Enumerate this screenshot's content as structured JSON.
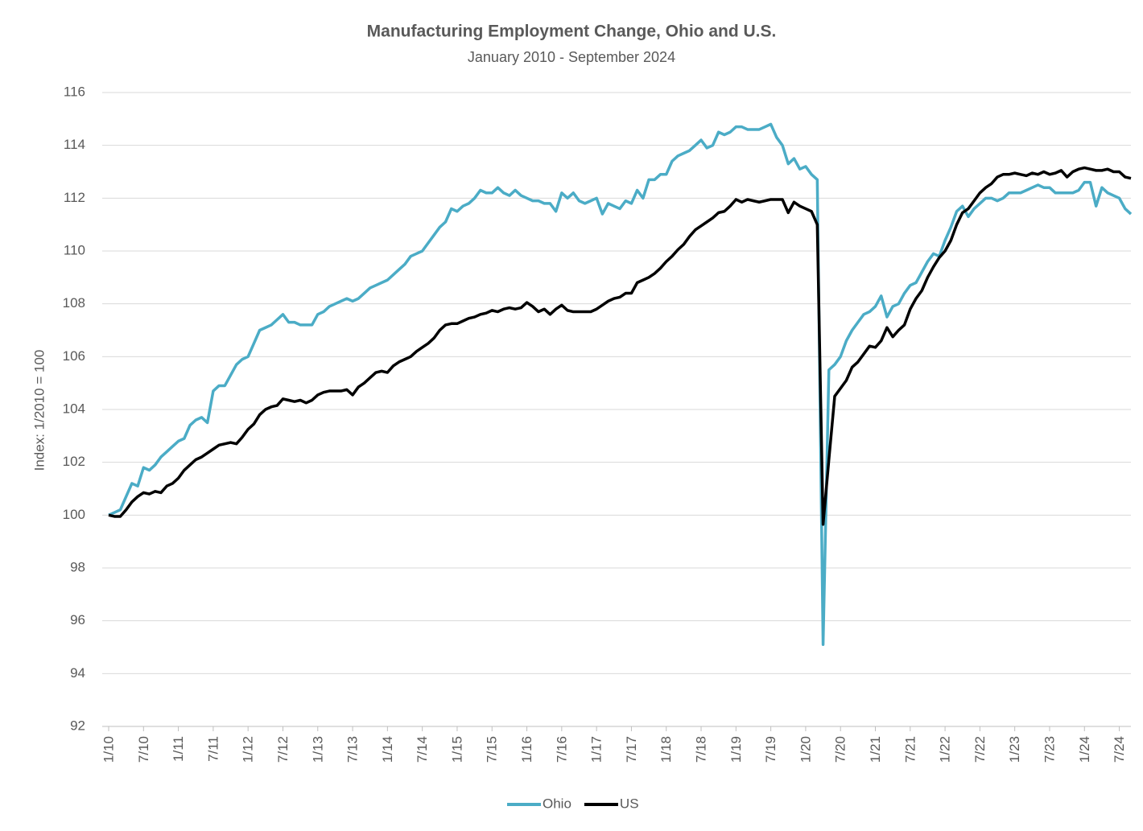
{
  "chart_data": {
    "type": "line",
    "title": "Manufacturing Employment Change, Ohio and U.S.",
    "subtitle": "January 2010 - September 2024",
    "y_label": "Index: 1/2010 = 100",
    "legend": "bottom",
    "grid": true,
    "ylim": [
      92,
      116
    ],
    "yticks": [
      92,
      94,
      96,
      98,
      100,
      102,
      104,
      106,
      108,
      110,
      112,
      114,
      116
    ],
    "categories": [
      "1/10",
      null,
      null,
      null,
      null,
      null,
      "7/10",
      null,
      null,
      null,
      null,
      null,
      "1/11",
      null,
      null,
      null,
      null,
      null,
      "7/11",
      null,
      null,
      null,
      null,
      null,
      "1/12",
      null,
      null,
      null,
      null,
      null,
      "7/12",
      null,
      null,
      null,
      null,
      null,
      "1/13",
      null,
      null,
      null,
      null,
      null,
      "7/13",
      null,
      null,
      null,
      null,
      null,
      "1/14",
      null,
      null,
      null,
      null,
      null,
      "7/14",
      null,
      null,
      null,
      null,
      null,
      "1/15",
      null,
      null,
      null,
      null,
      null,
      "7/15",
      null,
      null,
      null,
      null,
      null,
      "1/16",
      null,
      null,
      null,
      null,
      null,
      "7/16",
      null,
      null,
      null,
      null,
      null,
      "1/17",
      null,
      null,
      null,
      null,
      null,
      "7/17",
      null,
      null,
      null,
      null,
      null,
      "1/18",
      null,
      null,
      null,
      null,
      null,
      "7/18",
      null,
      null,
      null,
      null,
      null,
      "1/19",
      null,
      null,
      null,
      null,
      null,
      "7/19",
      null,
      null,
      null,
      null,
      null,
      "1/20",
      null,
      null,
      null,
      null,
      null,
      "7/20",
      null,
      null,
      null,
      null,
      null,
      "1/21",
      null,
      null,
      null,
      null,
      null,
      "7/21",
      null,
      null,
      null,
      null,
      null,
      "1/22",
      null,
      null,
      null,
      null,
      null,
      "7/22",
      null,
      null,
      null,
      null,
      null,
      "1/23",
      null,
      null,
      null,
      null,
      null,
      "7/23",
      null,
      null,
      null,
      null,
      null,
      "1/24",
      null,
      null,
      null,
      null,
      null,
      "7/24",
      null,
      null
    ],
    "series": [
      {
        "name": "Ohio",
        "color": "#4bacc6",
        "values": [
          100.0,
          100.1,
          100.2,
          100.7,
          101.2,
          101.1,
          101.8,
          101.7,
          101.9,
          102.2,
          102.4,
          102.6,
          102.8,
          102.9,
          103.4,
          103.6,
          103.7,
          103.5,
          104.7,
          104.9,
          104.9,
          105.3,
          105.7,
          105.9,
          106.0,
          106.5,
          107.0,
          107.1,
          107.2,
          107.4,
          107.6,
          107.3,
          107.3,
          107.2,
          107.2,
          107.2,
          107.6,
          107.7,
          107.9,
          108.0,
          108.1,
          108.2,
          108.1,
          108.2,
          108.4,
          108.6,
          108.7,
          108.8,
          108.9,
          109.1,
          109.3,
          109.5,
          109.8,
          109.9,
          110.0,
          110.3,
          110.6,
          110.9,
          111.1,
          111.6,
          111.5,
          111.7,
          111.8,
          112.0,
          112.3,
          112.2,
          112.2,
          112.4,
          112.2,
          112.1,
          112.3,
          112.1,
          112.0,
          111.9,
          111.9,
          111.8,
          111.8,
          111.5,
          112.2,
          112.0,
          112.2,
          111.9,
          111.8,
          111.9,
          112.0,
          111.4,
          111.8,
          111.7,
          111.6,
          111.9,
          111.8,
          112.3,
          112.0,
          112.7,
          112.7,
          112.9,
          112.9,
          113.4,
          113.6,
          113.7,
          113.8,
          114.0,
          114.2,
          113.9,
          114.0,
          114.5,
          114.4,
          114.5,
          114.7,
          114.7,
          114.6,
          114.6,
          114.6,
          114.7,
          114.8,
          114.3,
          114.0,
          113.3,
          113.5,
          113.1,
          113.2,
          112.9,
          112.7,
          95.1,
          105.5,
          105.7,
          106.0,
          106.6,
          107.0,
          107.3,
          107.6,
          107.7,
          107.9,
          108.3,
          107.5,
          107.9,
          108.0,
          108.4,
          108.7,
          108.8,
          109.2,
          109.6,
          109.9,
          109.8,
          110.4,
          110.9,
          111.5,
          111.7,
          111.3,
          111.6,
          111.8,
          112.0,
          112.0,
          111.9,
          112.0,
          112.2,
          112.2,
          112.2,
          112.3,
          112.4,
          112.5,
          112.4,
          112.4,
          112.2,
          112.2,
          112.2,
          112.2,
          112.3,
          112.6,
          112.6,
          111.7,
          112.4,
          112.2,
          112.1,
          112.0,
          111.6,
          111.4
        ]
      },
      {
        "name": "US",
        "color": "#000000",
        "values": [
          100.0,
          99.95,
          99.95,
          100.2,
          100.5,
          100.7,
          100.85,
          100.8,
          100.9,
          100.85,
          101.1,
          101.2,
          101.4,
          101.7,
          101.9,
          102.1,
          102.2,
          102.35,
          102.5,
          102.65,
          102.7,
          102.75,
          102.7,
          102.95,
          103.25,
          103.45,
          103.8,
          104.0,
          104.1,
          104.15,
          104.4,
          104.35,
          104.3,
          104.35,
          104.25,
          104.35,
          104.55,
          104.65,
          104.7,
          104.7,
          104.7,
          104.75,
          104.55,
          104.85,
          105.0,
          105.2,
          105.4,
          105.45,
          105.4,
          105.65,
          105.8,
          105.9,
          106.0,
          106.2,
          106.35,
          106.5,
          106.7,
          107.0,
          107.2,
          107.25,
          107.25,
          107.35,
          107.45,
          107.5,
          107.6,
          107.65,
          107.75,
          107.7,
          107.8,
          107.85,
          107.8,
          107.85,
          108.05,
          107.9,
          107.7,
          107.8,
          107.6,
          107.8,
          107.95,
          107.75,
          107.7,
          107.7,
          107.7,
          107.7,
          107.8,
          107.95,
          108.1,
          108.2,
          108.25,
          108.4,
          108.4,
          108.8,
          108.9,
          109.0,
          109.15,
          109.35,
          109.6,
          109.8,
          110.05,
          110.25,
          110.55,
          110.8,
          110.95,
          111.1,
          111.25,
          111.45,
          111.5,
          111.7,
          111.95,
          111.85,
          111.95,
          111.9,
          111.85,
          111.9,
          111.95,
          111.95,
          111.95,
          111.45,
          111.85,
          111.7,
          111.6,
          111.5,
          111.0,
          99.65,
          102.1,
          104.5,
          104.8,
          105.1,
          105.6,
          105.8,
          106.1,
          106.4,
          106.35,
          106.6,
          107.1,
          106.75,
          107.0,
          107.2,
          107.8,
          108.2,
          108.5,
          109.0,
          109.4,
          109.75,
          110.0,
          110.4,
          111.0,
          111.45,
          111.6,
          111.9,
          112.2,
          112.4,
          112.55,
          112.8,
          112.9,
          112.9,
          112.95,
          112.9,
          112.85,
          112.95,
          112.9,
          113.0,
          112.9,
          112.95,
          113.05,
          112.8,
          113.0,
          113.1,
          113.15,
          113.1,
          113.05,
          113.05,
          113.1,
          113.0,
          113.0,
          112.8,
          112.75
        ]
      }
    ]
  }
}
